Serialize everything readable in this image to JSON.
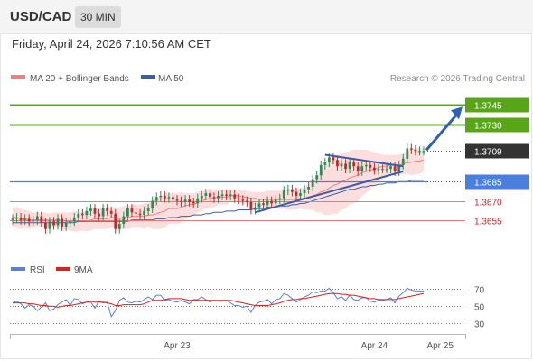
{
  "header": {
    "pair": "USD/CAD",
    "interval_label": "30 MIN"
  },
  "timestamp": "Friday, April 24, 2026 7:10:56 AM CET",
  "legend": {
    "ma20_bb_label": "MA 20 + Bollinger Bands",
    "ma50_label": "MA 50",
    "ma20_color": "#f08080",
    "ma50_color": "#3a5fa0"
  },
  "credit": "Research © 2026 Trading Central",
  "rsi_legend": {
    "rsi_label": "RSI",
    "ma_label": "9MA",
    "rsi_color": "#5b7fd6",
    "ma_color": "#e11d1d"
  },
  "colors": {
    "bull": "#2e8b57",
    "bear": "#c62828",
    "resistance": "#58a618",
    "support": "#4a7fe0",
    "target": "#c62828",
    "trend": "#3c5aa8"
  },
  "chart_data": {
    "type": "candlestick",
    "ylim": [
      1.3633,
      1.376
    ],
    "xticks": [
      {
        "label": "Apr 23",
        "index": 40
      },
      {
        "label": "Apr 24",
        "index": 88
      },
      {
        "label": "Apr 25",
        "index": 104
      }
    ],
    "levels": [
      {
        "value": 1.3745,
        "label": "1.3745",
        "kind": "resistance"
      },
      {
        "value": 1.373,
        "label": "1.3730",
        "kind": "resistance"
      },
      {
        "value": 1.3709,
        "label": "1.3709",
        "kind": "current"
      },
      {
        "value": 1.3685,
        "label": "1.3685",
        "kind": "support"
      },
      {
        "value": 1.367,
        "label": "1.3670",
        "kind": "target"
      },
      {
        "value": 1.3655,
        "label": "1.3655",
        "kind": "target"
      }
    ],
    "closes": [
      1.3656,
      1.3657,
      1.3655,
      1.3656,
      1.3654,
      1.3655,
      1.3658,
      1.3653,
      1.3648,
      1.3654,
      1.3651,
      1.3656,
      1.365,
      1.3653,
      1.3654,
      1.3657,
      1.366,
      1.3659,
      1.3662,
      1.3664,
      1.366,
      1.3658,
      1.3664,
      1.3662,
      1.366,
      1.3648,
      1.3652,
      1.3658,
      1.3664,
      1.3661,
      1.366,
      1.3659,
      1.3662,
      1.3664,
      1.367,
      1.3673,
      1.3674,
      1.3672,
      1.3673,
      1.3671,
      1.367,
      1.3669,
      1.3671,
      1.3669,
      1.3668,
      1.3672,
      1.3674,
      1.3676,
      1.3673,
      1.3672,
      1.3674,
      1.3675,
      1.3674,
      1.3675,
      1.3672,
      1.3671,
      1.367,
      1.3669,
      1.3663,
      1.3665,
      1.3668,
      1.3667,
      1.367,
      1.3668,
      1.3671,
      1.3672,
      1.3678,
      1.3679,
      1.3677,
      1.3674,
      1.3676,
      1.3679,
      1.3681,
      1.3687,
      1.369,
      1.3698,
      1.37,
      1.3704,
      1.3702,
      1.3697,
      1.3699,
      1.3695,
      1.37,
      1.3697,
      1.3693,
      1.3697,
      1.3698,
      1.3696,
      1.3694,
      1.3695,
      1.3695,
      1.3695,
      1.3697,
      1.3693,
      1.3698,
      1.3703,
      1.3711,
      1.371,
      1.3709,
      1.3709,
      1.3709
    ],
    "ma20": [
      1.3657,
      1.3657,
      1.3656,
      1.3656,
      1.3655,
      1.3655,
      1.3655,
      1.3655,
      1.3655,
      1.3655,
      1.3655,
      1.3655,
      1.3655,
      1.3654,
      1.3654,
      1.3654,
      1.3654,
      1.3654,
      1.3654,
      1.3655,
      1.3656,
      1.3656,
      1.3656,
      1.3656,
      1.3657,
      1.3657,
      1.3656,
      1.3657,
      1.3657,
      1.3658,
      1.3658,
      1.3658,
      1.3658,
      1.3659,
      1.3659,
      1.366,
      1.3661,
      1.3662,
      1.3664,
      1.3664,
      1.3664,
      1.3665,
      1.3666,
      1.3667,
      1.3667,
      1.3669,
      1.367,
      1.3671,
      1.3672,
      1.3672,
      1.3673,
      1.3673,
      1.3673,
      1.3674,
      1.3674,
      1.3674,
      1.3673,
      1.3673,
      1.3672,
      1.3672,
      1.3671,
      1.3671,
      1.3671,
      1.3671,
      1.3671,
      1.3671,
      1.3671,
      1.3671,
      1.3671,
      1.3671,
      1.3672,
      1.3672,
      1.3673,
      1.3674,
      1.3675,
      1.3677,
      1.3678,
      1.368,
      1.3682,
      1.3683,
      1.3685,
      1.3686,
      1.3688,
      1.3689,
      1.369,
      1.3692,
      1.3693,
      1.3694,
      1.3695,
      1.3696,
      1.3697,
      1.3697,
      1.3698,
      1.3698,
      1.3698,
      1.3699,
      1.37,
      1.37,
      1.3701,
      1.3701,
      1.3702
    ],
    "bb_upper": [
      1.3665,
      1.3665,
      1.3664,
      1.3663,
      1.3662,
      1.3661,
      1.3661,
      1.3661,
      1.3661,
      1.366,
      1.3661,
      1.3661,
      1.3661,
      1.3661,
      1.3661,
      1.3662,
      1.3662,
      1.3661,
      1.3662,
      1.3663,
      1.3664,
      1.3664,
      1.3664,
      1.3664,
      1.3665,
      1.3665,
      1.3665,
      1.3666,
      1.3666,
      1.3667,
      1.3667,
      1.3667,
      1.3668,
      1.3668,
      1.367,
      1.3672,
      1.3674,
      1.3675,
      1.3676,
      1.3676,
      1.3676,
      1.3677,
      1.3676,
      1.3676,
      1.3676,
      1.3677,
      1.3678,
      1.3678,
      1.3679,
      1.3679,
      1.3679,
      1.3679,
      1.3679,
      1.3679,
      1.3679,
      1.3679,
      1.3678,
      1.3678,
      1.3677,
      1.3677,
      1.3677,
      1.3677,
      1.3678,
      1.3678,
      1.3678,
      1.3678,
      1.3678,
      1.3679,
      1.3679,
      1.3679,
      1.368,
      1.3681,
      1.3683,
      1.3685,
      1.3689,
      1.3693,
      1.3697,
      1.3701,
      1.3704,
      1.3706,
      1.3707,
      1.3708,
      1.3709,
      1.371,
      1.371,
      1.371,
      1.371,
      1.3709,
      1.3708,
      1.3707,
      1.3706,
      1.3706,
      1.3706,
      1.3706,
      1.3706,
      1.3707,
      1.3709,
      1.371,
      1.3711,
      1.3711,
      1.3711
    ],
    "bb_lower": [
      1.3649,
      1.3649,
      1.3648,
      1.3649,
      1.3648,
      1.3649,
      1.3649,
      1.3649,
      1.3649,
      1.365,
      1.3649,
      1.3649,
      1.3649,
      1.3647,
      1.3647,
      1.3646,
      1.3646,
      1.3647,
      1.3646,
      1.3647,
      1.3648,
      1.3648,
      1.3648,
      1.3648,
      1.3649,
      1.3649,
      1.3647,
      1.3648,
      1.3648,
      1.3649,
      1.3649,
      1.3649,
      1.3648,
      1.365,
      1.3648,
      1.3648,
      1.3648,
      1.3649,
      1.3652,
      1.3652,
      1.3652,
      1.3653,
      1.3656,
      1.3658,
      1.3658,
      1.3661,
      1.3662,
      1.3664,
      1.3665,
      1.3665,
      1.3667,
      1.3667,
      1.3667,
      1.3669,
      1.3669,
      1.3669,
      1.3668,
      1.3668,
      1.3667,
      1.3667,
      1.3665,
      1.3665,
      1.3664,
      1.3664,
      1.3664,
      1.3664,
      1.3664,
      1.3663,
      1.3663,
      1.3663,
      1.3664,
      1.3663,
      1.3663,
      1.3663,
      1.3661,
      1.3661,
      1.3659,
      1.3659,
      1.366,
      1.366,
      1.3663,
      1.3664,
      1.3667,
      1.3668,
      1.367,
      1.3674,
      1.3676,
      1.3679,
      1.3682,
      1.3685,
      1.3688,
      1.3688,
      1.369,
      1.369,
      1.369,
      1.3691,
      1.3691,
      1.369,
      1.3691,
      1.3691,
      1.3693
    ],
    "ma50": [
      1.3653,
      1.3653,
      1.3653,
      1.3653,
      1.3653,
      1.3653,
      1.3653,
      1.3653,
      1.3653,
      1.3653,
      1.3653,
      1.3653,
      1.3653,
      1.3653,
      1.3653,
      1.3653,
      1.3654,
      1.3654,
      1.3654,
      1.3654,
      1.3654,
      1.3654,
      1.3654,
      1.3654,
      1.3654,
      1.3654,
      1.3654,
      1.3654,
      1.3654,
      1.3655,
      1.3655,
      1.3655,
      1.3655,
      1.3655,
      1.3655,
      1.3656,
      1.3656,
      1.3656,
      1.3657,
      1.3657,
      1.3657,
      1.3658,
      1.3658,
      1.3658,
      1.3659,
      1.3659,
      1.3659,
      1.366,
      1.366,
      1.3661,
      1.3661,
      1.3661,
      1.3662,
      1.3662,
      1.3662,
      1.3663,
      1.3663,
      1.3663,
      1.3663,
      1.3664,
      1.3664,
      1.3664,
      1.3665,
      1.3665,
      1.3665,
      1.3666,
      1.3666,
      1.3666,
      1.3667,
      1.3667,
      1.3668,
      1.3668,
      1.3669,
      1.367,
      1.3671,
      1.3672,
      1.3673,
      1.3674,
      1.3675,
      1.3676,
      1.3677,
      1.3678,
      1.3679,
      1.3679,
      1.368,
      1.3681,
      1.3681,
      1.3682,
      1.3682,
      1.3683,
      1.3683,
      1.3684,
      1.3684,
      1.3684,
      1.3685,
      1.3685,
      1.3685,
      1.3686,
      1.3686,
      1.3686,
      1.3686
    ],
    "rsi": {
      "levels": [
        70,
        50,
        30
      ],
      "ylim": [
        20,
        80
      ],
      "rsi": [
        53,
        55,
        52,
        47,
        51,
        49,
        44,
        48,
        53,
        44,
        46,
        51,
        54,
        57,
        50,
        58,
        57,
        52,
        54,
        54,
        47,
        55,
        53,
        54,
        37,
        44,
        56,
        59,
        54,
        53,
        55,
        54,
        57,
        60,
        57,
        62,
        62,
        56,
        57,
        55,
        54,
        56,
        54,
        52,
        57,
        57,
        60,
        57,
        54,
        56,
        55,
        55,
        56,
        53,
        50,
        50,
        48,
        49,
        42,
        50,
        54,
        55,
        57,
        52,
        57,
        58,
        64,
        62,
        58,
        54,
        57,
        60,
        62,
        66,
        65,
        67,
        67,
        70,
        65,
        58,
        60,
        56,
        62,
        57,
        56,
        59,
        59,
        55,
        54,
        56,
        56,
        57,
        59,
        53,
        61,
        65,
        70,
        68,
        67,
        67,
        67
      ],
      "rsi_ma": [
        53,
        53,
        53,
        53,
        52,
        52,
        51,
        50,
        50,
        49,
        49,
        48,
        49,
        50,
        50,
        51,
        52,
        53,
        54,
        55,
        54,
        54,
        54,
        53,
        52,
        50,
        50,
        51,
        51,
        51,
        51,
        51,
        52,
        54,
        56,
        56,
        56,
        57,
        58,
        58,
        58,
        58,
        57,
        56,
        56,
        56,
        56,
        56,
        56,
        56,
        56,
        56,
        56,
        56,
        55,
        54,
        53,
        52,
        51,
        50,
        50,
        50,
        50,
        51,
        52,
        53,
        55,
        56,
        57,
        57,
        58,
        58,
        59,
        60,
        61,
        62,
        63,
        64,
        64,
        64,
        63,
        63,
        62,
        62,
        61,
        60,
        59,
        58,
        58,
        57,
        57,
        57,
        57,
        57,
        58,
        59,
        60,
        61,
        62,
        63,
        64
      ]
    }
  }
}
